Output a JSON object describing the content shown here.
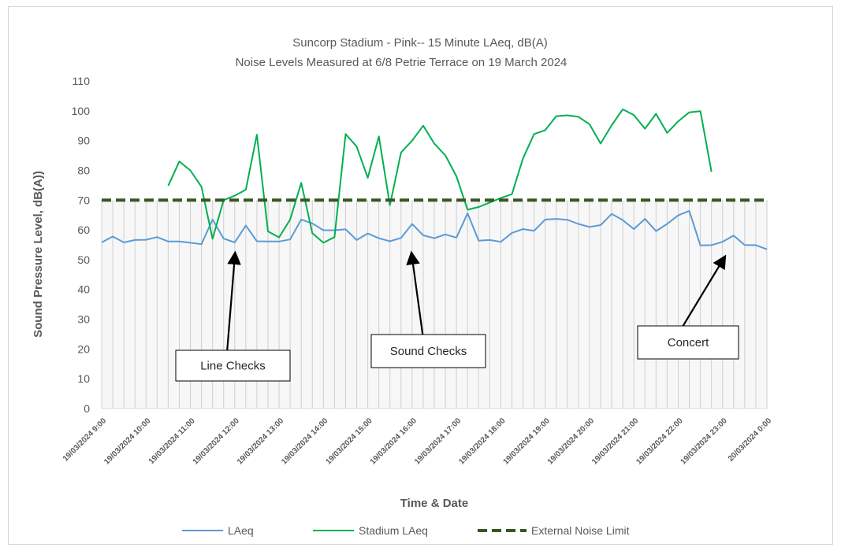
{
  "chart_data": {
    "type": "line",
    "title": "Suncorp Stadium - Pink-- 15 Minute LAeq, dB(A)",
    "subtitle": "Noise Levels Measured at 6/8 Petrie Terrace on 19 March 2024",
    "xlabel": "Time & Date",
    "ylabel": "Sound Pressure Level, dB(A))",
    "ylim": [
      0,
      110
    ],
    "yticks": [
      0,
      10,
      20,
      30,
      40,
      50,
      60,
      70,
      80,
      90,
      100,
      110
    ],
    "x_tick_labels": [
      "19/03/2024 9:00",
      "19/03/2024 10:00",
      "19/03/2024 11:00",
      "19/03/2024 12:00",
      "19/03/2024 13:00",
      "19/03/2024 14:00",
      "19/03/2024 15:00",
      "19/03/2024 16:00",
      "19/03/2024 17:00",
      "19/03/2024 18:00",
      "19/03/2024 19:00",
      "19/03/2024 20:00",
      "19/03/2024 21:00",
      "19/03/2024 22:00",
      "19/03/2024 23:00",
      "20/03/2024 0:00"
    ],
    "x_range": [
      "19/03/2024 9:00",
      "20/03/2024 0:00"
    ],
    "x_interval": "15 minutes",
    "series": [
      {
        "name": "LAeq",
        "color": "#5b9bd5",
        "values": [
          55.8,
          57.8,
          55.8,
          56.6,
          56.7,
          57.6,
          56.1,
          56.1,
          55.7,
          55.2,
          63.5,
          57.1,
          55.8,
          61.5,
          56.2,
          56.1,
          56.1,
          56.8,
          63.5,
          62.2,
          59.9,
          59.9,
          60.2,
          56.6,
          58.8,
          57.2,
          56.2,
          57.3,
          62.0,
          58.2,
          57.2,
          58.5,
          57.4,
          65.6,
          56.4,
          56.6,
          56.0,
          59.0,
          60.3,
          59.7,
          63.5,
          63.7,
          63.4,
          62.0,
          61.0,
          61.6,
          65.4,
          63.3,
          60.3,
          63.7,
          59.6,
          62.0,
          64.9,
          66.4,
          54.8,
          54.9,
          56.0,
          58.1,
          54.9,
          54.9,
          53.5
        ]
      },
      {
        "name": "Stadium LAeq",
        "color": "#00b050",
        "values": [
          null,
          null,
          null,
          null,
          null,
          null,
          74.8,
          83.0,
          80.0,
          74.5,
          57.0,
          70.0,
          71.5,
          73.5,
          92.0,
          59.5,
          57.5,
          63.5,
          75.8,
          58.9,
          55.7,
          57.6,
          92.2,
          88.0,
          77.5,
          91.4,
          68.3,
          86.0,
          90.0,
          95.0,
          89.0,
          85.0,
          78.0,
          66.8,
          67.7,
          69.2,
          70.7,
          72.0,
          84.0,
          92.2,
          93.5,
          98.2,
          98.5,
          98.0,
          95.5,
          89.0,
          95.2,
          100.5,
          98.6,
          94.0,
          99.0,
          92.6,
          96.5,
          99.5,
          99.9,
          79.5,
          null,
          null,
          null,
          null,
          null
        ]
      },
      {
        "name": "External Noise Limit",
        "color": "#375623",
        "style": "dashed",
        "constant": 70
      }
    ],
    "annotations": [
      {
        "text": "Line Checks",
        "arrow_target": [
          "19/03/2024 12:00",
          56
        ]
      },
      {
        "text": "Sound Checks",
        "arrow_target": [
          "19/03/2024 16:00",
          56
        ]
      },
      {
        "text": "Concert",
        "arrow_target": [
          "19/03/2024 23:00",
          55
        ]
      }
    ],
    "grid": "vertical lines at each 15-minute interval below 70 dB(A)",
    "legend": "bottom"
  }
}
